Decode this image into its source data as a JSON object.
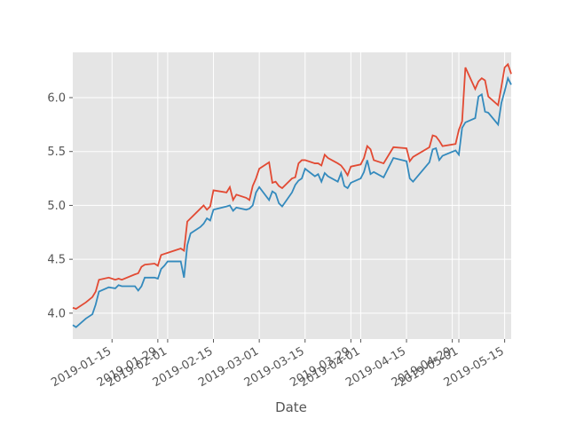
{
  "chart_data": {
    "type": "line",
    "x_label": "Date",
    "x": [
      "2019-01-03",
      "2019-01-04",
      "2019-01-07",
      "2019-01-09",
      "2019-01-10",
      "2019-01-11",
      "2019-01-14",
      "2019-01-16",
      "2019-01-17",
      "2019-01-18",
      "2019-01-22",
      "2019-01-23",
      "2019-01-24",
      "2019-01-25",
      "2019-01-28",
      "2019-01-29",
      "2019-01-30",
      "2019-01-31",
      "2019-02-01",
      "2019-02-05",
      "2019-02-06",
      "2019-02-07",
      "2019-02-08",
      "2019-02-11",
      "2019-02-12",
      "2019-02-13",
      "2019-02-14",
      "2019-02-15",
      "2019-02-19",
      "2019-02-20",
      "2019-02-21",
      "2019-02-22",
      "2019-02-25",
      "2019-02-26",
      "2019-02-27",
      "2019-02-28",
      "2019-03-01",
      "2019-03-04",
      "2019-03-05",
      "2019-03-06",
      "2019-03-07",
      "2019-03-08",
      "2019-03-11",
      "2019-03-12",
      "2019-03-13",
      "2019-03-14",
      "2019-03-15",
      "2019-03-18",
      "2019-03-19",
      "2019-03-20",
      "2019-03-21",
      "2019-03-22",
      "2019-03-25",
      "2019-03-26",
      "2019-03-27",
      "2019-03-28",
      "2019-03-29",
      "2019-04-01",
      "2019-04-02",
      "2019-04-03",
      "2019-04-04",
      "2019-04-05",
      "2019-04-08",
      "2019-04-11",
      "2019-04-15",
      "2019-04-16",
      "2019-04-17",
      "2019-04-22",
      "2019-04-23",
      "2019-04-24",
      "2019-04-25",
      "2019-04-26",
      "2019-04-30",
      "2019-05-01",
      "2019-05-02",
      "2019-05-03",
      "2019-05-06",
      "2019-05-07",
      "2019-05-08",
      "2019-05-09",
      "2019-05-10",
      "2019-05-13",
      "2019-05-14",
      "2019-05-15",
      "2019-05-16",
      "2019-05-17"
    ],
    "series": [
      {
        "color": "#E24A33",
        "values": [
          4.05,
          4.04,
          4.1,
          4.15,
          4.2,
          4.31,
          4.33,
          4.31,
          4.32,
          4.31,
          4.36,
          4.37,
          4.43,
          4.45,
          4.46,
          4.44,
          4.54,
          4.55,
          4.56,
          4.6,
          4.58,
          4.85,
          4.88,
          4.97,
          5.0,
          4.96,
          4.99,
          5.14,
          5.12,
          5.17,
          5.05,
          5.1,
          5.07,
          5.05,
          5.18,
          5.25,
          5.34,
          5.4,
          5.21,
          5.22,
          5.18,
          5.16,
          5.25,
          5.26,
          5.39,
          5.42,
          5.42,
          5.39,
          5.39,
          5.37,
          5.47,
          5.44,
          5.39,
          5.37,
          5.33,
          5.28,
          5.36,
          5.38,
          5.44,
          5.55,
          5.52,
          5.42,
          5.39,
          5.54,
          5.53,
          5.41,
          5.45,
          5.54,
          5.65,
          5.64,
          5.6,
          5.55,
          5.57,
          5.7,
          5.78,
          6.28,
          6.08,
          6.15,
          6.18,
          6.16,
          6.01,
          5.93,
          6.1,
          6.28,
          6.31,
          6.22
        ]
      },
      {
        "color": "#348ABD",
        "values": [
          3.89,
          3.87,
          3.95,
          3.99,
          4.08,
          4.2,
          4.24,
          4.23,
          4.26,
          4.25,
          4.25,
          4.21,
          4.25,
          4.33,
          4.33,
          4.32,
          4.41,
          4.44,
          4.48,
          4.48,
          4.33,
          4.63,
          4.74,
          4.8,
          4.83,
          4.88,
          4.86,
          4.96,
          4.99,
          5.0,
          4.95,
          4.98,
          4.96,
          4.97,
          5.0,
          5.12,
          5.17,
          5.05,
          5.13,
          5.11,
          5.02,
          4.99,
          5.12,
          5.19,
          5.23,
          5.25,
          5.34,
          5.27,
          5.29,
          5.22,
          5.3,
          5.27,
          5.22,
          5.3,
          5.18,
          5.16,
          5.21,
          5.25,
          5.31,
          5.42,
          5.29,
          5.31,
          5.26,
          5.44,
          5.41,
          5.25,
          5.22,
          5.4,
          5.52,
          5.53,
          5.42,
          5.46,
          5.51,
          5.47,
          5.72,
          5.77,
          5.81,
          6.01,
          6.03,
          5.87,
          5.86,
          5.75,
          5.95,
          6.06,
          6.18,
          6.12
        ]
      }
    ],
    "xlim": [
      "2019-01-03",
      "2019-05-17"
    ],
    "xticks": [
      "2019-01-15",
      "2019-01-29",
      "2019-02-01",
      "2019-02-15",
      "2019-03-01",
      "2019-03-15",
      "2019-03-29",
      "2019-04-01",
      "2019-04-15",
      "2019-04-29",
      "2019-05-01",
      "2019-05-15"
    ],
    "ylim": [
      3.76,
      6.42
    ],
    "yticks": [
      {
        "value": 4,
        "label": "4.0"
      },
      4.5,
      {
        "value": 5,
        "label": "5.0"
      },
      5.5,
      {
        "value": 6,
        "label": "6.0"
      }
    ],
    "grid": true
  }
}
